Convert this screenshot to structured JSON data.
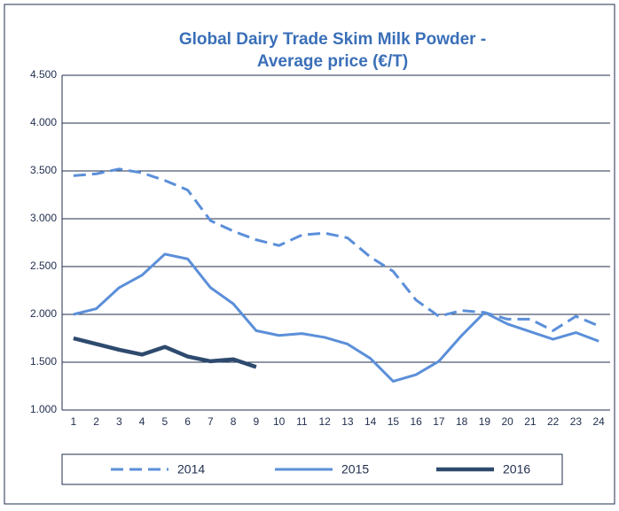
{
  "chart_data": {
    "type": "line",
    "title": [
      "Global Dairy Trade Skim Milk Powder  -",
      "Average price (€/T)"
    ],
    "categories": [
      "1",
      "2",
      "3",
      "4",
      "5",
      "6",
      "7",
      "8",
      "9",
      "10",
      "11",
      "12",
      "13",
      "14",
      "15",
      "16",
      "17",
      "18",
      "19",
      "20",
      "21",
      "22",
      "23",
      "24"
    ],
    "series": [
      {
        "name": "2014",
        "color": "#5b8fd9",
        "style": "dashed",
        "values": [
          3450,
          3470,
          3520,
          3480,
          3400,
          3300,
          2980,
          2870,
          2780,
          2720,
          2830,
          2850,
          2800,
          2600,
          2450,
          2150,
          1980,
          2040,
          2020,
          1950,
          1950,
          1830,
          1980,
          1880
        ]
      },
      {
        "name": "2015",
        "color": "#5b8fd9",
        "style": "solid",
        "values": [
          2000,
          2060,
          2280,
          2410,
          2630,
          2580,
          2280,
          2110,
          1830,
          1780,
          1800,
          1760,
          1690,
          1540,
          1300,
          1370,
          1510,
          1780,
          2020,
          1900,
          1820,
          1740,
          1810,
          1720
        ]
      },
      {
        "name": "2016",
        "color": "#2e4a6e",
        "style": "solid",
        "values": [
          1750,
          1690,
          1630,
          1580,
          1660,
          1560,
          1510,
          1530,
          1450,
          null,
          null,
          null,
          null,
          null,
          null,
          null,
          null,
          null,
          null,
          null,
          null,
          null,
          null,
          null
        ]
      }
    ],
    "ylim": [
      1000,
      4500
    ],
    "yticks": [
      {
        "value": 1000,
        "label": "1.000"
      },
      {
        "value": 1500,
        "label": "1.500"
      },
      {
        "value": 2000,
        "label": "2.000"
      },
      {
        "value": 2500,
        "label": "2.500"
      },
      {
        "value": 3000,
        "label": "3.000"
      },
      {
        "value": 3500,
        "label": "3.500"
      },
      {
        "value": 4000,
        "label": "4.000"
      },
      {
        "value": 4500,
        "label": "4.500"
      }
    ],
    "grid": true,
    "legend": "bottom"
  }
}
